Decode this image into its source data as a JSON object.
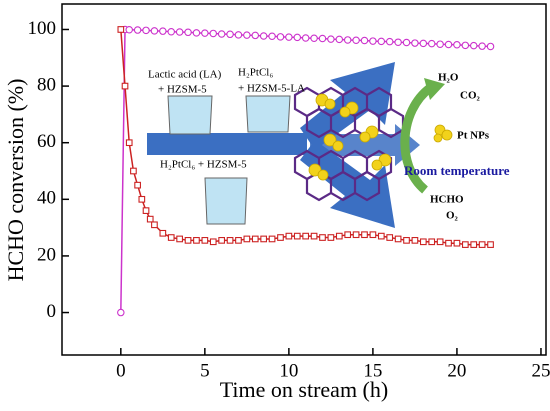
{
  "chart_data": {
    "type": "line",
    "xlabel": "Time on stream (h)",
    "ylabel": "HCHO conversion (%)",
    "xlim": [
      -3.5,
      25.3
    ],
    "ylim": [
      -15,
      109
    ],
    "xticks": [
      0,
      5,
      10,
      15,
      20,
      25
    ],
    "yticks": [
      0,
      20,
      40,
      60,
      80,
      100
    ],
    "series": [
      {
        "color": "#cc33cc",
        "marker": "circle",
        "x": [
          0,
          0.25,
          0.5,
          1,
          1.5,
          2,
          2.5,
          3,
          3.5,
          4,
          4.5,
          5,
          5.5,
          6,
          6.5,
          7,
          7.5,
          8,
          8.5,
          9,
          9.5,
          10,
          10.5,
          11,
          11.5,
          12,
          12.5,
          13,
          13.5,
          14,
          14.5,
          15,
          15.5,
          16,
          16.5,
          17,
          17.5,
          18,
          18.5,
          19,
          19.5,
          20,
          20.5,
          21,
          21.5,
          22
        ],
        "values": [
          0,
          100,
          99.9,
          99.8,
          99.7,
          99.5,
          99.4,
          99.2,
          99.1,
          99.0,
          98.8,
          98.7,
          98.6,
          98.4,
          98.3,
          98.1,
          98.0,
          97.9,
          97.7,
          97.6,
          97.4,
          97.3,
          97.2,
          97.0,
          96.9,
          96.8,
          96.6,
          96.5,
          96.3,
          96.2,
          96.1,
          95.9,
          95.8,
          95.7,
          95.5,
          95.4,
          95.2,
          95.1,
          95.0,
          94.8,
          94.7,
          94.6,
          94.4,
          94.3,
          94.1,
          94.0
        ]
      },
      {
        "color": "#cc2222",
        "marker": "square",
        "x": [
          0,
          0.25,
          0.5,
          0.75,
          1,
          1.25,
          1.5,
          1.75,
          2,
          2.5,
          3,
          3.5,
          4,
          4.5,
          5,
          5.5,
          6,
          6.5,
          7,
          7.5,
          8,
          8.5,
          9,
          9.5,
          10,
          10.5,
          11,
          11.5,
          12,
          12.5,
          13,
          13.5,
          14,
          14.5,
          15,
          15.5,
          16,
          16.5,
          17,
          17.5,
          18,
          18.5,
          19,
          19.5,
          20,
          20.5,
          21,
          21.5,
          22
        ],
        "values": [
          100,
          80,
          60,
          50,
          45,
          40,
          36,
          33,
          31,
          28,
          26.5,
          26,
          25.5,
          25.5,
          25.5,
          25,
          25.5,
          25.5,
          25.5,
          26,
          26,
          26,
          26,
          26.5,
          27,
          27,
          27,
          27,
          26.5,
          26.5,
          27,
          27.5,
          27.5,
          27.5,
          27.5,
          27,
          26.5,
          26,
          25.5,
          25.5,
          25,
          25,
          25,
          24.5,
          24.5,
          24,
          24,
          24,
          24
        ]
      }
    ],
    "annotations": [
      "Lactic acid (LA)",
      "+ HZSM-5",
      "H₂PtCl₆",
      "+ HZSM-5-LA",
      "H₂PtCl₆ + HZSM-5",
      "H₂O",
      "CO₂",
      "Pt NPs",
      "Room temperature",
      "HCHO",
      "O₂"
    ]
  }
}
